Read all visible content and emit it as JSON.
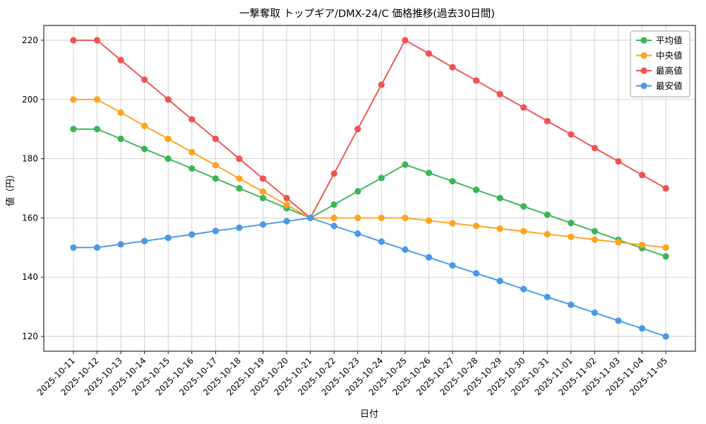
{
  "chart_data": {
    "type": "line",
    "title": "一撃奪取 トップギア/DMX-24/C 価格推移(過去30日間)",
    "xlabel": "日付",
    "ylabel": "値（円）",
    "grid": true,
    "legend_position": "upper right",
    "marker": "circle",
    "x_tick_rotation": 45,
    "ylim": [
      115,
      225
    ],
    "yticks": [
      120,
      140,
      160,
      180,
      200,
      220
    ],
    "x": [
      "2025-10-11",
      "2025-10-12",
      "2025-10-13",
      "2025-10-14",
      "2025-10-15",
      "2025-10-16",
      "2025-10-17",
      "2025-10-18",
      "2025-10-19",
      "2025-10-20",
      "2025-10-21",
      "2025-10-22",
      "2025-10-23",
      "2025-10-24",
      "2025-10-25",
      "2025-10-26",
      "2025-10-27",
      "2025-10-28",
      "2025-10-29",
      "2025-10-30",
      "2025-10-31",
      "2025-11-01",
      "2025-11-02",
      "2025-11-03",
      "2025-11-04",
      "2025-11-05"
    ],
    "series": [
      {
        "id": "average",
        "name": "平均値",
        "color": "#3CB558",
        "values": [
          190.0,
          190.0,
          186.7,
          183.3,
          180.0,
          176.7,
          173.3,
          170.0,
          166.7,
          163.3,
          160.0,
          164.5,
          169.0,
          173.5,
          178.0,
          175.2,
          172.4,
          169.5,
          166.7,
          163.9,
          161.1,
          158.3,
          155.5,
          152.6,
          149.8,
          147.0
        ]
      },
      {
        "id": "median",
        "name": "中央値",
        "color": "#FFA320",
        "values": [
          200.0,
          200.0,
          195.6,
          191.1,
          186.7,
          182.2,
          177.8,
          173.3,
          168.9,
          164.4,
          160.0,
          160.0,
          160.0,
          160.0,
          160.0,
          159.1,
          158.2,
          157.3,
          156.4,
          155.5,
          154.5,
          153.6,
          152.7,
          151.8,
          150.9,
          150.0
        ]
      },
      {
        "id": "max",
        "name": "最高値",
        "color": "#EF5350",
        "values": [
          220.0,
          220.0,
          213.3,
          206.7,
          200.0,
          193.3,
          186.7,
          180.0,
          173.3,
          166.7,
          160.0,
          175.0,
          190.0,
          205.0,
          220.0,
          215.5,
          210.9,
          206.4,
          201.8,
          197.3,
          192.7,
          188.2,
          183.6,
          179.1,
          174.5,
          170.0
        ]
      },
      {
        "id": "min",
        "name": "最安値",
        "color": "#4A98E8",
        "values": [
          150.0,
          150.0,
          151.1,
          152.2,
          153.3,
          154.4,
          155.6,
          156.7,
          157.8,
          158.9,
          160.0,
          157.3,
          154.7,
          152.0,
          149.3,
          146.7,
          144.0,
          141.3,
          138.7,
          136.0,
          133.3,
          130.7,
          128.0,
          125.3,
          122.7,
          120.0
        ]
      }
    ]
  }
}
